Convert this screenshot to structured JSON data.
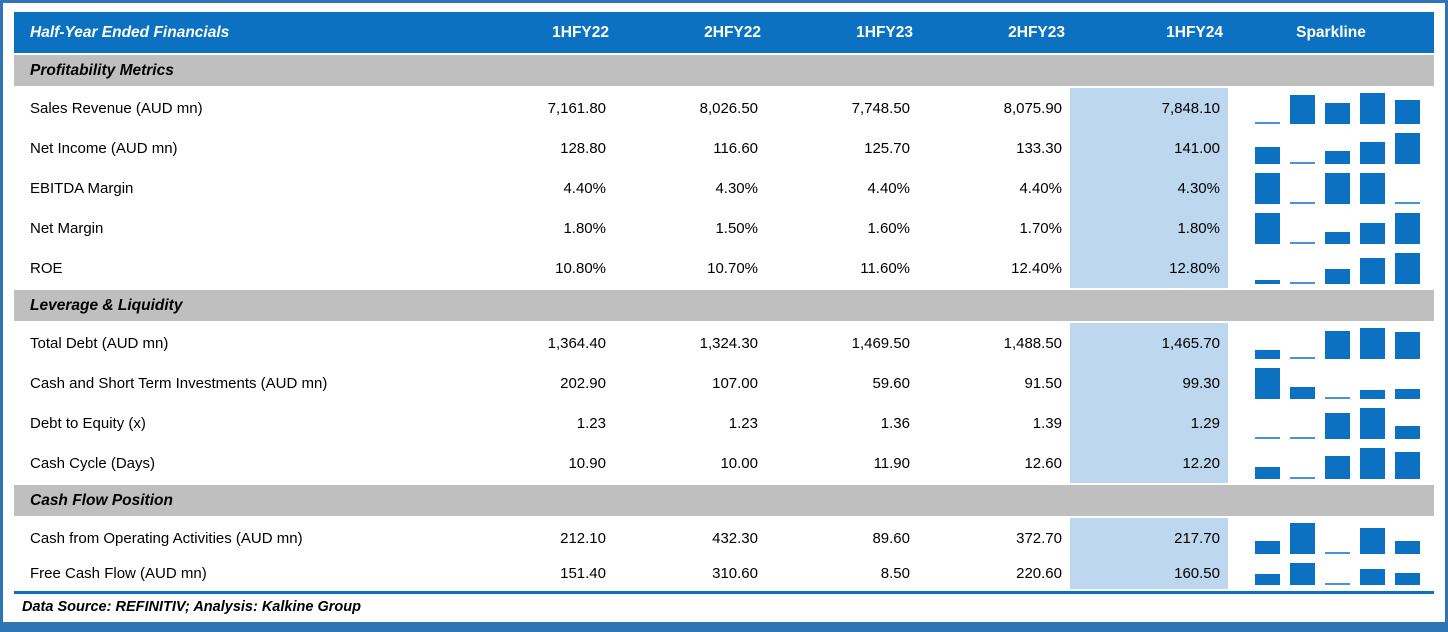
{
  "colors": {
    "header_bar": "#0D71C1",
    "section_bar": "#BFBFBF",
    "highlight_column_fill": "#BDD7EE",
    "sparkline_bar": "#0D71C1",
    "sparkline_min_bar": "#4A91D6",
    "frame_border": "#2E75B6"
  },
  "chart_data": {
    "type": "table",
    "title": "Half-Year Ended Financials",
    "columns": [
      "1HFY22",
      "2HFY22",
      "1HFY23",
      "2HFY23",
      "1HFY24",
      "Sparkline"
    ],
    "highlight_column": "1HFY24",
    "sparkline_style": "column",
    "sections": [
      {
        "label": "Profitability Metrics",
        "rows": [
          {
            "label": "Sales Revenue (AUD mn)",
            "display": [
              "7,161.80",
              "8,026.50",
              "7,748.50",
              "8,075.90",
              "7,848.10"
            ],
            "values": [
              7161.8,
              8026.5,
              7748.5,
              8075.9,
              7848.1
            ]
          },
          {
            "label": "Net Income (AUD mn)",
            "display": [
              "128.80",
              "116.60",
              "125.70",
              "133.30",
              "141.00"
            ],
            "values": [
              128.8,
              116.6,
              125.7,
              133.3,
              141.0
            ]
          },
          {
            "label": "EBITDA Margin",
            "display": [
              "4.40%",
              "4.30%",
              "4.40%",
              "4.40%",
              "4.30%"
            ],
            "values": [
              4.4,
              4.3,
              4.4,
              4.4,
              4.3
            ]
          },
          {
            "label": "Net Margin",
            "display": [
              "1.80%",
              "1.50%",
              "1.60%",
              "1.70%",
              "1.80%"
            ],
            "values": [
              1.8,
              1.5,
              1.6,
              1.7,
              1.8
            ]
          },
          {
            "label": "ROE",
            "display": [
              "10.80%",
              "10.70%",
              "11.60%",
              "12.40%",
              "12.80%"
            ],
            "values": [
              10.8,
              10.7,
              11.6,
              12.4,
              12.8
            ]
          }
        ]
      },
      {
        "label": "Leverage & Liquidity",
        "rows": [
          {
            "label": "Total Debt (AUD mn)",
            "display": [
              "1,364.40",
              "1,324.30",
              "1,469.50",
              "1,488.50",
              "1,465.70"
            ],
            "values": [
              1364.4,
              1324.3,
              1469.5,
              1488.5,
              1465.7
            ]
          },
          {
            "label": "Cash and Short Term Investments (AUD mn)",
            "display": [
              "202.90",
              "107.00",
              "59.60",
              "91.50",
              "99.30"
            ],
            "values": [
              202.9,
              107.0,
              59.6,
              91.5,
              99.3
            ]
          },
          {
            "label": "Debt to Equity (x)",
            "display": [
              "1.23",
              "1.23",
              "1.36",
              "1.39",
              "1.29"
            ],
            "values": [
              1.23,
              1.23,
              1.36,
              1.39,
              1.29
            ]
          },
          {
            "label": "Cash Cycle (Days)",
            "display": [
              "10.90",
              "10.00",
              "11.90",
              "12.60",
              "12.20"
            ],
            "values": [
              10.9,
              10.0,
              11.9,
              12.6,
              12.2
            ]
          }
        ]
      },
      {
        "label": "Cash Flow Position",
        "rows": [
          {
            "label": "Cash from Operating Activities (AUD mn)",
            "display": [
              "212.10",
              "432.30",
              "89.60",
              "372.70",
              "217.70"
            ],
            "values": [
              212.1,
              432.3,
              89.6,
              372.7,
              217.7
            ]
          },
          {
            "label": "Free Cash Flow (AUD mn)",
            "display": [
              "151.40",
              "310.60",
              "8.50",
              "220.60",
              "160.50"
            ],
            "values": [
              151.4,
              310.6,
              8.5,
              220.6,
              160.5
            ]
          }
        ]
      }
    ],
    "footer": "Data Source: REFINITIV; Analysis: Kalkine Group"
  }
}
